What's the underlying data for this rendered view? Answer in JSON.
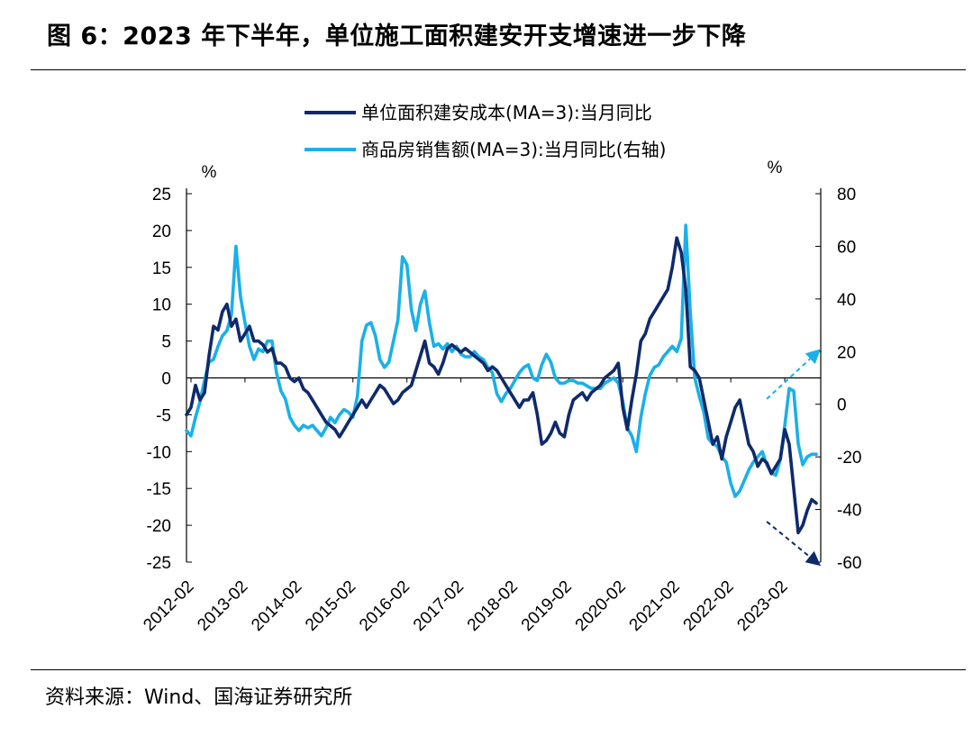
{
  "title": "图 6：2023 年下半年，单位施工面积建安开支增速进一步下降",
  "source": "资料来源：Wind、国海证券研究所",
  "chart_data": {
    "type": "line",
    "y_left": {
      "label": "%",
      "ylim": [
        -25,
        25
      ],
      "ticks": [
        25,
        20,
        15,
        10,
        5,
        0,
        -5,
        -10,
        -15,
        -20,
        -25
      ]
    },
    "y_right": {
      "label": "%",
      "ylim": [
        -60,
        80
      ],
      "ticks": [
        80,
        60,
        40,
        20,
        0,
        -20,
        -40,
        -60
      ]
    },
    "x_tick_labels": [
      "2012-02",
      "2013-02",
      "2014-02",
      "2015-02",
      "2016-02",
      "2017-02",
      "2018-02",
      "2019-02",
      "2020-02",
      "2021-02",
      "2022-02",
      "2023-02"
    ],
    "legend_position": "top-center",
    "grid": false,
    "series": [
      {
        "name": "单位面积建安成本(MA=3):当月同比",
        "axis": "left",
        "color": "#0f2a6b",
        "points": [
          [
            "2012-01",
            -5
          ],
          [
            "2012-02",
            -4
          ],
          [
            "2012-03",
            -1
          ],
          [
            "2012-04",
            -3
          ],
          [
            "2012-05",
            -2
          ],
          [
            "2012-06",
            3
          ],
          [
            "2012-07",
            7
          ],
          [
            "2012-08",
            6.5
          ],
          [
            "2012-09",
            9
          ],
          [
            "2012-10",
            10
          ],
          [
            "2012-11",
            7
          ],
          [
            "2012-12",
            8
          ],
          [
            "2013-01",
            5
          ],
          [
            "2013-02",
            6
          ],
          [
            "2013-03",
            7
          ],
          [
            "2013-04",
            5
          ],
          [
            "2013-05",
            5
          ],
          [
            "2013-06",
            4.5
          ],
          [
            "2013-07",
            3.5
          ],
          [
            "2013-08",
            4
          ],
          [
            "2013-09",
            2
          ],
          [
            "2013-10",
            2
          ],
          [
            "2013-11",
            1.5
          ],
          [
            "2013-12",
            0
          ],
          [
            "2014-01",
            -0.5
          ],
          [
            "2014-02",
            0
          ],
          [
            "2014-03",
            -1.5
          ],
          [
            "2014-04",
            -2
          ],
          [
            "2014-05",
            -3
          ],
          [
            "2014-06",
            -4
          ],
          [
            "2014-07",
            -5
          ],
          [
            "2014-08",
            -6
          ],
          [
            "2014-09",
            -6.5
          ],
          [
            "2014-10",
            -7
          ],
          [
            "2014-11",
            -8
          ],
          [
            "2014-12",
            -7
          ],
          [
            "2015-01",
            -6
          ],
          [
            "2015-02",
            -5
          ],
          [
            "2015-03",
            -4
          ],
          [
            "2015-04",
            -3
          ],
          [
            "2015-05",
            -4
          ],
          [
            "2015-06",
            -3
          ],
          [
            "2015-07",
            -2
          ],
          [
            "2015-08",
            -1
          ],
          [
            "2015-09",
            -1.5
          ],
          [
            "2015-10",
            -2.5
          ],
          [
            "2015-11",
            -3.5
          ],
          [
            "2015-12",
            -3
          ],
          [
            "2016-01",
            -2
          ],
          [
            "2016-02",
            -1.5
          ],
          [
            "2016-03",
            -1
          ],
          [
            "2016-04",
            1
          ],
          [
            "2016-05",
            3
          ],
          [
            "2016-06",
            5
          ],
          [
            "2016-07",
            2
          ],
          [
            "2016-08",
            1.5
          ],
          [
            "2016-09",
            0.5
          ],
          [
            "2016-10",
            2
          ],
          [
            "2016-11",
            4
          ],
          [
            "2016-12",
            4.5
          ],
          [
            "2017-01",
            4
          ],
          [
            "2017-02",
            3.5
          ],
          [
            "2017-03",
            4
          ],
          [
            "2017-04",
            3.5
          ],
          [
            "2017-05",
            3
          ],
          [
            "2017-06",
            2.5
          ],
          [
            "2017-07",
            2
          ],
          [
            "2017-08",
            1
          ],
          [
            "2017-09",
            1.5
          ],
          [
            "2017-10",
            1
          ],
          [
            "2017-11",
            0
          ],
          [
            "2017-12",
            -1
          ],
          [
            "2018-01",
            -2
          ],
          [
            "2018-02",
            -3
          ],
          [
            "2018-03",
            -4
          ],
          [
            "2018-04",
            -3
          ],
          [
            "2018-05",
            -3
          ],
          [
            "2018-06",
            -2
          ],
          [
            "2018-07",
            -5
          ],
          [
            "2018-08",
            -9
          ],
          [
            "2018-09",
            -8.5
          ],
          [
            "2018-10",
            -7.5
          ],
          [
            "2018-11",
            -6
          ],
          [
            "2018-12",
            -7.5
          ],
          [
            "2019-01",
            -8
          ],
          [
            "2019-02",
            -5
          ],
          [
            "2019-03",
            -3
          ],
          [
            "2019-04",
            -2.5
          ],
          [
            "2019-05",
            -2
          ],
          [
            "2019-06",
            -3
          ],
          [
            "2019-07",
            -2
          ],
          [
            "2019-08",
            -1.5
          ],
          [
            "2019-09",
            -1
          ],
          [
            "2019-10",
            0
          ],
          [
            "2019-11",
            0.5
          ],
          [
            "2019-12",
            1
          ],
          [
            "2020-01",
            2
          ],
          [
            "2020-02",
            -4
          ],
          [
            "2020-03",
            -7
          ],
          [
            "2020-04",
            -3
          ],
          [
            "2020-05",
            0.5
          ],
          [
            "2020-06",
            5
          ],
          [
            "2020-07",
            6
          ],
          [
            "2020-08",
            8
          ],
          [
            "2020-09",
            9
          ],
          [
            "2020-10",
            10
          ],
          [
            "2020-11",
            11
          ],
          [
            "2020-12",
            12
          ],
          [
            "2021-01",
            15
          ],
          [
            "2021-02",
            19
          ],
          [
            "2021-03",
            17
          ],
          [
            "2021-04",
            12
          ],
          [
            "2021-05",
            1.5
          ],
          [
            "2021-06",
            1
          ],
          [
            "2021-07",
            0
          ],
          [
            "2021-08",
            -3
          ],
          [
            "2021-09",
            -6
          ],
          [
            "2021-10",
            -9
          ],
          [
            "2021-11",
            -8
          ],
          [
            "2021-12",
            -11
          ],
          [
            "2022-01",
            -8
          ],
          [
            "2022-02",
            -6
          ],
          [
            "2022-03",
            -4
          ],
          [
            "2022-04",
            -3
          ],
          [
            "2022-05",
            -6
          ],
          [
            "2022-06",
            -9
          ],
          [
            "2022-07",
            -10
          ],
          [
            "2022-08",
            -12
          ],
          [
            "2022-09",
            -11
          ],
          [
            "2022-10",
            -11.5
          ],
          [
            "2022-11",
            -13
          ],
          [
            "2022-12",
            -12
          ],
          [
            "2023-01",
            -11
          ],
          [
            "2023-02",
            -7
          ],
          [
            "2023-03",
            -9
          ],
          [
            "2023-04",
            -15
          ],
          [
            "2023-05",
            -21
          ],
          [
            "2023-06",
            -20
          ],
          [
            "2023-07",
            -18
          ],
          [
            "2023-08",
            -16.5
          ],
          [
            "2023-09",
            -17
          ]
        ]
      },
      {
        "name": "商品房销售额(MA=3):当月同比(右轴)",
        "axis": "right",
        "color": "#1ab0e8",
        "points": [
          [
            "2012-01",
            -10
          ],
          [
            "2012-02",
            -12
          ],
          [
            "2012-03",
            -5
          ],
          [
            "2012-04",
            1
          ],
          [
            "2012-05",
            9
          ],
          [
            "2012-06",
            16
          ],
          [
            "2012-07",
            17
          ],
          [
            "2012-08",
            22
          ],
          [
            "2012-09",
            26
          ],
          [
            "2012-10",
            28
          ],
          [
            "2012-11",
            34
          ],
          [
            "2012-12",
            60
          ],
          [
            "2013-01",
            41
          ],
          [
            "2013-02",
            31
          ],
          [
            "2013-03",
            22
          ],
          [
            "2013-04",
            17
          ],
          [
            "2013-05",
            21
          ],
          [
            "2013-06",
            20
          ],
          [
            "2013-07",
            24
          ],
          [
            "2013-08",
            24
          ],
          [
            "2013-09",
            12
          ],
          [
            "2013-10",
            5
          ],
          [
            "2013-11",
            2
          ],
          [
            "2013-12",
            -5
          ],
          [
            "2014-01",
            -8
          ],
          [
            "2014-02",
            -10
          ],
          [
            "2014-03",
            -8
          ],
          [
            "2014-04",
            -9
          ],
          [
            "2014-05",
            -8
          ],
          [
            "2014-06",
            -10
          ],
          [
            "2014-07",
            -12
          ],
          [
            "2014-08",
            -9
          ],
          [
            "2014-09",
            -5
          ],
          [
            "2014-10",
            -7
          ],
          [
            "2014-11",
            -4
          ],
          [
            "2014-12",
            -2
          ],
          [
            "2015-01",
            -3
          ],
          [
            "2015-02",
            -5
          ],
          [
            "2015-03",
            3
          ],
          [
            "2015-04",
            24
          ],
          [
            "2015-05",
            30
          ],
          [
            "2015-06",
            31
          ],
          [
            "2015-07",
            26
          ],
          [
            "2015-08",
            17
          ],
          [
            "2015-09",
            14
          ],
          [
            "2015-10",
            16
          ],
          [
            "2015-11",
            24
          ],
          [
            "2015-12",
            32
          ],
          [
            "2016-01",
            56
          ],
          [
            "2016-02",
            53
          ],
          [
            "2016-03",
            36
          ],
          [
            "2016-04",
            28
          ],
          [
            "2016-05",
            38
          ],
          [
            "2016-06",
            43
          ],
          [
            "2016-07",
            31
          ],
          [
            "2016-08",
            22
          ],
          [
            "2016-09",
            23
          ],
          [
            "2016-10",
            21
          ],
          [
            "2016-11",
            23
          ],
          [
            "2016-12",
            20
          ],
          [
            "2017-01",
            22
          ],
          [
            "2017-02",
            19
          ],
          [
            "2017-03",
            18
          ],
          [
            "2017-04",
            18
          ],
          [
            "2017-05",
            20
          ],
          [
            "2017-06",
            18
          ],
          [
            "2017-07",
            17
          ],
          [
            "2017-08",
            14
          ],
          [
            "2017-09",
            12
          ],
          [
            "2017-10",
            4
          ],
          [
            "2017-11",
            1
          ],
          [
            "2017-12",
            4
          ],
          [
            "2018-01",
            6
          ],
          [
            "2018-02",
            9
          ],
          [
            "2018-03",
            12
          ],
          [
            "2018-04",
            14
          ],
          [
            "2018-05",
            15
          ],
          [
            "2018-06",
            10
          ],
          [
            "2018-07",
            9
          ],
          [
            "2018-08",
            15
          ],
          [
            "2018-09",
            19
          ],
          [
            "2018-10",
            16
          ],
          [
            "2018-11",
            10
          ],
          [
            "2018-12",
            8
          ],
          [
            "2019-01",
            8
          ],
          [
            "2019-02",
            9
          ],
          [
            "2019-03",
            9
          ],
          [
            "2019-04",
            8
          ],
          [
            "2019-05",
            8
          ],
          [
            "2019-06",
            7
          ],
          [
            "2019-07",
            6
          ],
          [
            "2019-08",
            6
          ],
          [
            "2019-09",
            6
          ],
          [
            "2019-10",
            8
          ],
          [
            "2019-11",
            9
          ],
          [
            "2019-12",
            10
          ],
          [
            "2020-01",
            8
          ],
          [
            "2020-02",
            1
          ],
          [
            "2020-03",
            -9
          ],
          [
            "2020-04",
            -12
          ],
          [
            "2020-05",
            -18
          ],
          [
            "2020-06",
            -5
          ],
          [
            "2020-07",
            4
          ],
          [
            "2020-08",
            11
          ],
          [
            "2020-09",
            14
          ],
          [
            "2020-10",
            15
          ],
          [
            "2020-11",
            18
          ],
          [
            "2020-12",
            20
          ],
          [
            "2021-01",
            22
          ],
          [
            "2021-02",
            20
          ],
          [
            "2021-03",
            25
          ],
          [
            "2021-04",
            68
          ],
          [
            "2021-05",
            35
          ],
          [
            "2021-06",
            10
          ],
          [
            "2021-07",
            3
          ],
          [
            "2021-08",
            -3
          ],
          [
            "2021-09",
            -13
          ],
          [
            "2021-10",
            -15
          ],
          [
            "2021-11",
            -16
          ],
          [
            "2021-12",
            -20
          ],
          [
            "2022-01",
            -22
          ],
          [
            "2022-02",
            -30
          ],
          [
            "2022-03",
            -35
          ],
          [
            "2022-04",
            -33
          ],
          [
            "2022-05",
            -29
          ],
          [
            "2022-06",
            -25
          ],
          [
            "2022-07",
            -22
          ],
          [
            "2022-08",
            -20
          ],
          [
            "2022-09",
            -18
          ],
          [
            "2022-10",
            -23
          ],
          [
            "2022-11",
            -26
          ],
          [
            "2022-12",
            -27
          ],
          [
            "2023-01",
            -21
          ],
          [
            "2023-02",
            -8
          ],
          [
            "2023-03",
            6
          ],
          [
            "2023-04",
            5
          ],
          [
            "2023-05",
            -15
          ],
          [
            "2023-06",
            -23
          ],
          [
            "2023-07",
            -20
          ],
          [
            "2023-08",
            -19
          ],
          [
            "2023-09",
            -19
          ]
        ]
      }
    ],
    "annotations": [
      {
        "type": "arrow",
        "style": "dashed",
        "color": "#1ab0e8",
        "direction": "up-right",
        "ref_axis": "right",
        "from": [
          "2022-10",
          2
        ],
        "to": [
          "2023-10",
          21
        ]
      },
      {
        "type": "arrow",
        "style": "dashed",
        "color": "#0f2a6b",
        "direction": "down-right",
        "ref_axis": "left",
        "from": [
          "2022-10",
          -19.5
        ],
        "to": [
          "2023-10",
          -25.5
        ]
      }
    ]
  }
}
